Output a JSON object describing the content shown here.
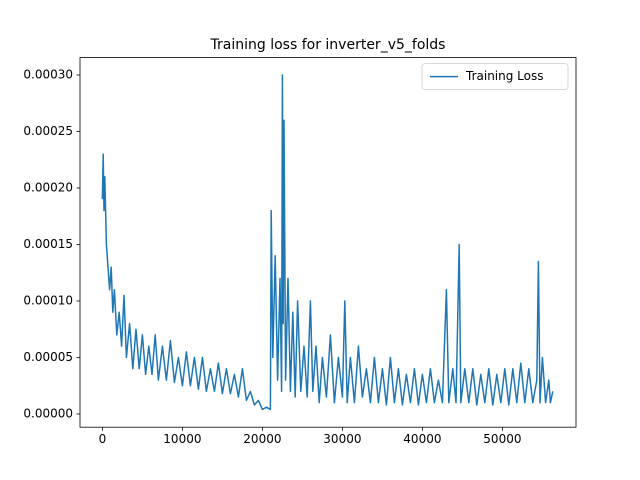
{
  "chart_data": {
    "type": "line",
    "title": "Training loss for inverter_v5_folds",
    "xlim": [
      -2800,
      59200
    ],
    "xticks": [
      0,
      10000,
      20000,
      30000,
      40000,
      50000
    ],
    "ylim": [
      -1.17e-05,
      0.0003154
    ],
    "yticks": [
      {
        "value": 0,
        "label": "0.00000"
      },
      {
        "value": 5e-05,
        "label": "0.00005"
      },
      {
        "value": 0.0001,
        "label": "0.00010"
      },
      {
        "value": 0.00015,
        "label": "0.00015"
      },
      {
        "value": 0.0002,
        "label": "0.00020"
      },
      {
        "value": 0.00025,
        "label": "0.00025"
      },
      {
        "value": 0.0003,
        "label": "0.00030"
      }
    ],
    "grid": false,
    "legend": "upper right",
    "x": [
      0,
      100,
      200,
      300,
      500,
      700,
      900,
      1100,
      1300,
      1500,
      1800,
      2100,
      2400,
      2700,
      3000,
      3400,
      3800,
      4200,
      4600,
      5000,
      5400,
      5800,
      6200,
      6600,
      7000,
      7500,
      8000,
      8500,
      9000,
      9500,
      10000,
      10500,
      11000,
      11500,
      12000,
      12500,
      13000,
      13500,
      14000,
      14500,
      15000,
      15500,
      16000,
      16500,
      17000,
      17500,
      18000,
      18500,
      19000,
      19500,
      20000,
      20500,
      21000,
      21100,
      21300,
      21600,
      21900,
      22200,
      22400,
      22500,
      22600,
      22700,
      22900,
      23200,
      23500,
      23800,
      24100,
      24400,
      24800,
      25200,
      25600,
      26000,
      26300,
      26700,
      27100,
      27500,
      28000,
      28500,
      29000,
      29500,
      30000,
      30300,
      30600,
      31000,
      31500,
      32000,
      32500,
      33000,
      33500,
      34000,
      34500,
      35000,
      35500,
      36000,
      36500,
      37000,
      37500,
      38000,
      38500,
      39000,
      39500,
      40000,
      40500,
      41000,
      41500,
      42000,
      42500,
      43000,
      43300,
      43800,
      44200,
      44600,
      44800,
      45300,
      45800,
      46300,
      46800,
      47300,
      47800,
      48300,
      48800,
      49300,
      49800,
      50300,
      50800,
      51300,
      51800,
      52300,
      52800,
      53300,
      53800,
      54300,
      54500,
      54700,
      55000,
      55400,
      55800,
      56000,
      56300
    ],
    "series": [
      {
        "name": "Training Loss",
        "color": "#1f77b4",
        "values": [
          0.00019,
          0.00023,
          0.00018,
          0.00021,
          0.00015,
          0.00013,
          0.00011,
          0.00013,
          9e-05,
          0.00011,
          7e-05,
          9e-05,
          6e-05,
          0.000105,
          5e-05,
          8e-05,
          4e-05,
          7.5e-05,
          4e-05,
          7e-05,
          3.5e-05,
          6e-05,
          3.5e-05,
          7e-05,
          3e-05,
          6e-05,
          3e-05,
          6.5e-05,
          2.8e-05,
          5e-05,
          2.5e-05,
          5.5e-05,
          2.5e-05,
          5e-05,
          2.2e-05,
          5e-05,
          2e-05,
          4e-05,
          2e-05,
          4.5e-05,
          1.8e-05,
          4e-05,
          1.8e-05,
          3.5e-05,
          1.5e-05,
          4e-05,
          1.2e-05,
          2e-05,
          8e-06,
          1.2e-05,
          4e-06,
          6e-06,
          4e-06,
          0.00018,
          5e-05,
          0.00014,
          3e-05,
          0.00012,
          2e-05,
          0.0003,
          8e-05,
          0.00026,
          3e-05,
          0.00012,
          2e-05,
          9e-05,
          1.5e-05,
          0.0001,
          2e-05,
          6e-05,
          1.5e-05,
          0.0001,
          2e-05,
          6e-05,
          1e-05,
          5e-05,
          1.5e-05,
          7e-05,
          1e-05,
          5e-05,
          1.5e-05,
          0.0001,
          1e-05,
          5e-05,
          1e-05,
          6e-05,
          1.5e-05,
          4e-05,
          1e-05,
          5e-05,
          1e-05,
          4e-05,
          8e-06,
          5e-05,
          1e-05,
          4e-05,
          8e-06,
          3.5e-05,
          1e-05,
          4e-05,
          8e-06,
          3.5e-05,
          1e-05,
          4e-05,
          1e-05,
          3e-05,
          1e-05,
          0.00011,
          1e-05,
          4e-05,
          1e-05,
          0.00015,
          1e-05,
          4e-05,
          1e-05,
          4e-05,
          8e-06,
          3.5e-05,
          1e-05,
          4e-05,
          8e-06,
          3.5e-05,
          1e-05,
          4e-05,
          8e-06,
          4e-05,
          1e-05,
          4.5e-05,
          1e-05,
          4e-05,
          1e-05,
          3e-05,
          0.000135,
          1e-05,
          5e-05,
          1e-05,
          3e-05,
          1e-05,
          2e-05
        ]
      }
    ]
  }
}
